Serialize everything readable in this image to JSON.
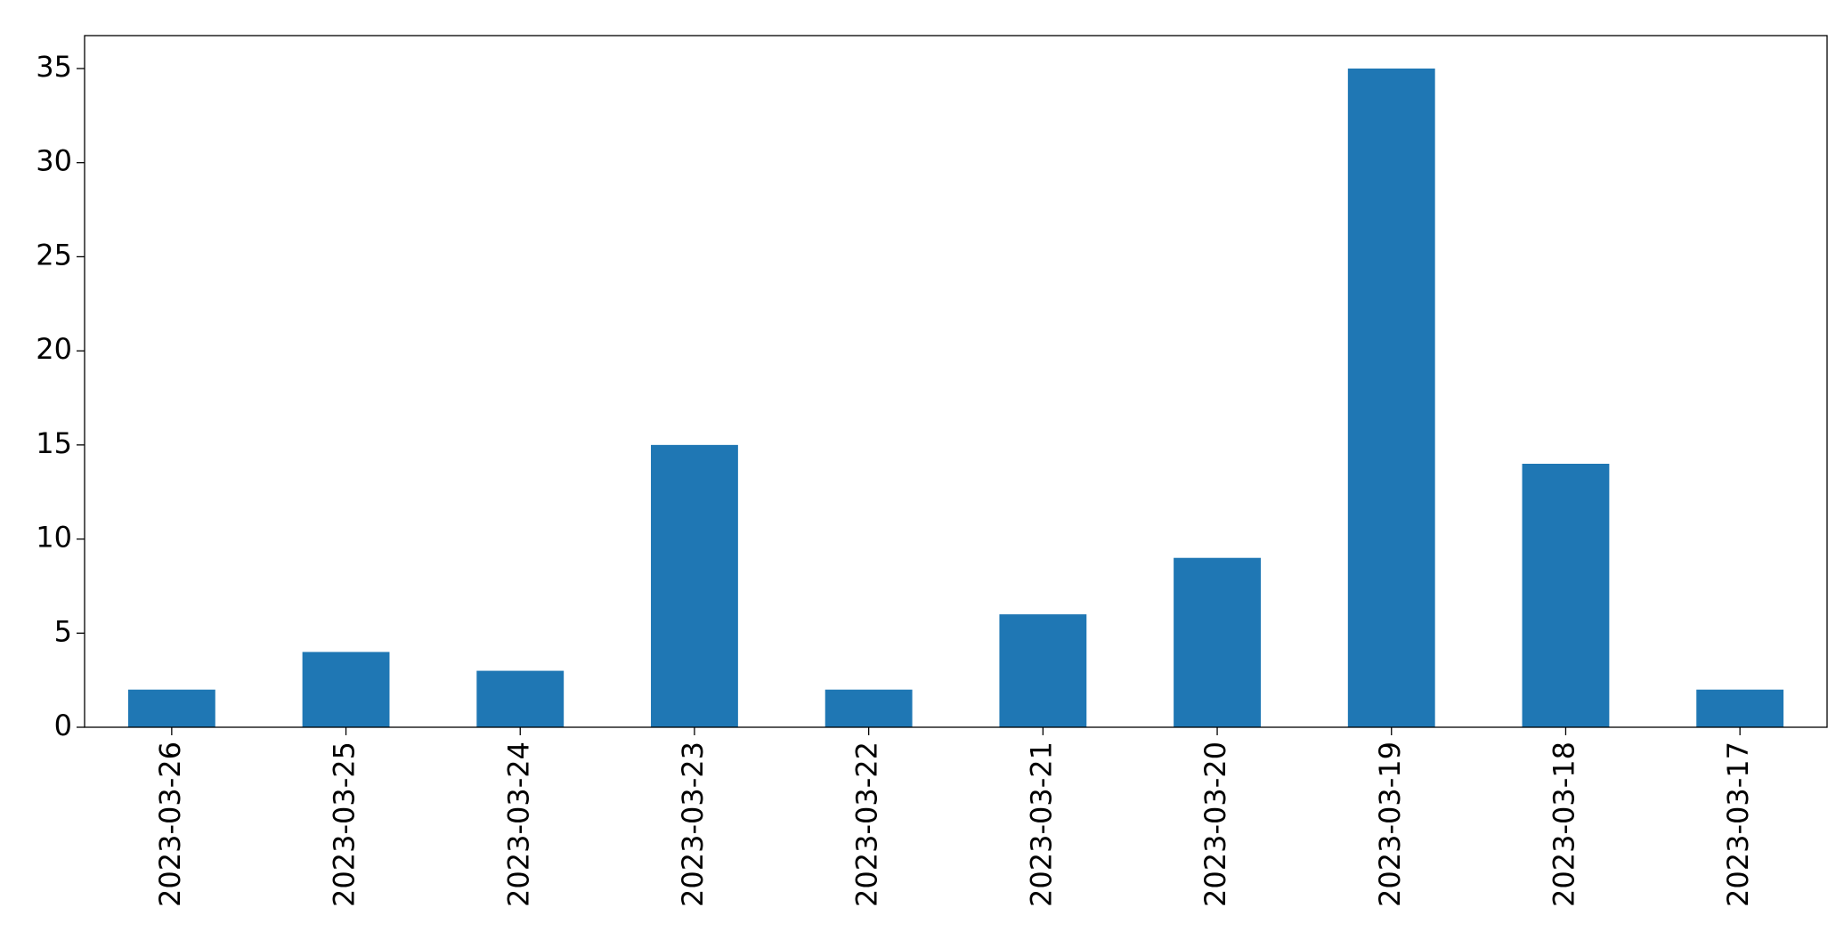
{
  "chart_data": {
    "type": "bar",
    "categories": [
      "2023-03-26",
      "2023-03-25",
      "2023-03-24",
      "2023-03-23",
      "2023-03-22",
      "2023-03-21",
      "2023-03-20",
      "2023-03-19",
      "2023-03-18",
      "2023-03-17"
    ],
    "values": [
      2,
      4,
      3,
      15,
      2,
      6,
      9,
      35,
      14,
      2
    ],
    "color": "#1f77b4",
    "ylim": [
      0,
      36.75
    ],
    "yticks": [
      0,
      5,
      10,
      15,
      20,
      25,
      30,
      35
    ],
    "grid": false
  }
}
